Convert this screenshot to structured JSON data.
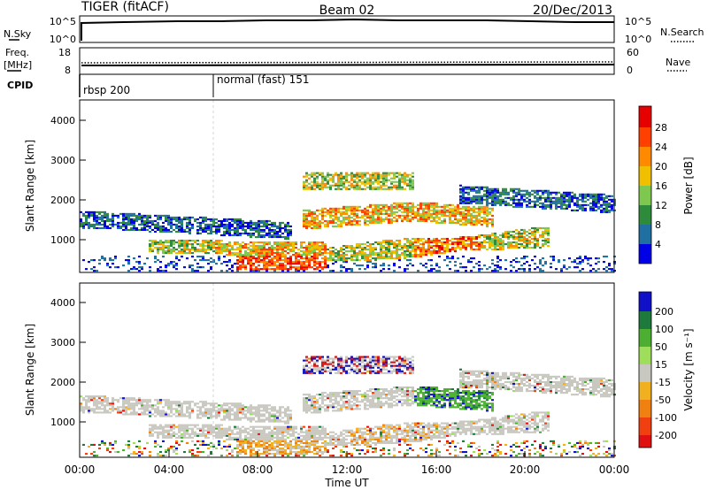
{
  "header": {
    "station": "TIGER (fitACF)",
    "beam": "Beam 02",
    "date": "20/Dec/2013"
  },
  "sky_panel": {
    "left_label": "N.Sky",
    "right_label": "N.Search",
    "left_ticks": [
      "10^5",
      "10^0"
    ],
    "right_ticks": [
      "10^5",
      "10^0"
    ]
  },
  "freq_panel": {
    "left_label_line1": "Freq.",
    "left_label_line2": "[MHz]",
    "right_label": "Nave",
    "left_ticks": [
      "18",
      "8"
    ],
    "right_ticks": [
      "60",
      "0"
    ]
  },
  "cpid_panel": {
    "label": "CPID",
    "segments": [
      {
        "label": "rbsp 200",
        "start_hour": 0
      },
      {
        "label": "normal (fast) 151",
        "start_hour": 6
      }
    ]
  },
  "time_axis": {
    "label": "Time UT",
    "tick_labels": [
      "00:00",
      "04:00",
      "08:00",
      "12:00",
      "16:00",
      "20:00",
      "00:00"
    ]
  },
  "colors": {
    "power": [
      "#0000e6",
      "#1f6fa0",
      "#2e8b3c",
      "#7ec850",
      "#f0c000",
      "#ff8a00",
      "#ff4000",
      "#e60000"
    ],
    "velocity": [
      "#1010c8",
      "#1e7a3c",
      "#4caf32",
      "#9fde5a",
      "#c8c8c0",
      "#f0b020",
      "#f08010",
      "#f04010",
      "#e01010"
    ]
  },
  "chart_data": [
    {
      "type": "heatmap",
      "ylabel": "Slant Range [km]",
      "xlabel": "Time UT",
      "xlim_hours": [
        0,
        24
      ],
      "ylim": [
        180,
        4550
      ],
      "y_ticks": [
        1000,
        2000,
        3000,
        4000
      ],
      "colorbar": {
        "label": "Power [dB]",
        "tick_labels": [
          "4",
          "8",
          "12",
          "16",
          "20",
          "24",
          "28"
        ]
      }
    },
    {
      "type": "heatmap",
      "ylabel": "Slant Range [km]",
      "xlabel": "Time UT",
      "xlim_hours": [
        0,
        24
      ],
      "ylim": [
        180,
        4550
      ],
      "y_ticks": [
        1000,
        2000,
        3000,
        4000
      ],
      "colorbar": {
        "label": "Velocity [m s⁻¹]",
        "tick_labels": [
          "200",
          "100",
          "50",
          "15",
          "-15",
          "-50",
          "-100",
          "-200"
        ]
      }
    }
  ]
}
